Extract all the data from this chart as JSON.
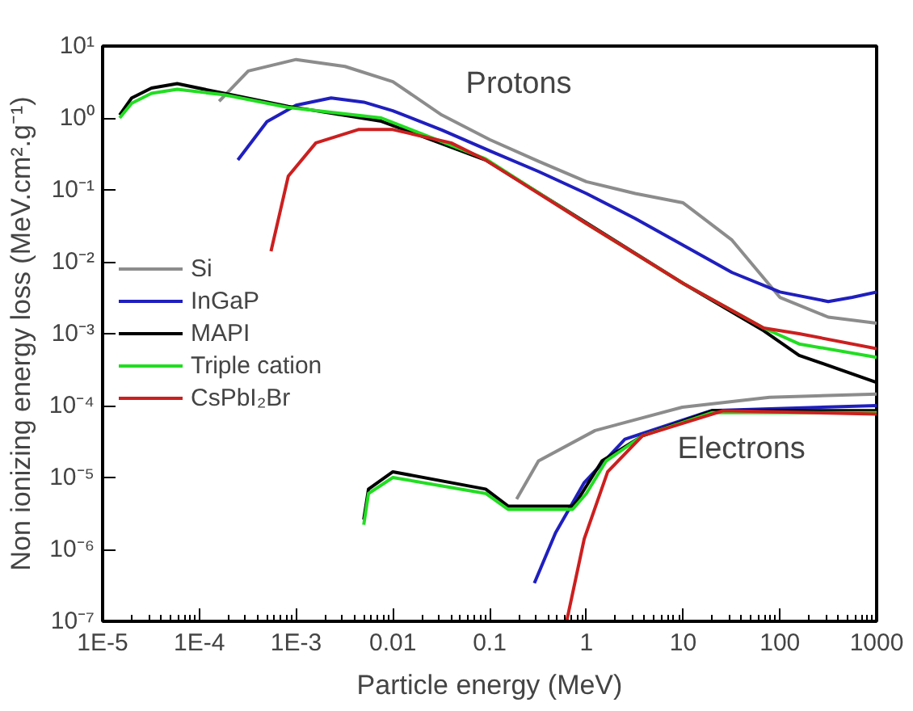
{
  "chart_data": {
    "type": "line",
    "xlabel": "Particle energy (MeV)",
    "ylabel": "Non ionizing energy loss (MeV.cm².g⁻¹)",
    "log": "xy",
    "xlim": [
      1e-05,
      1000
    ],
    "ylim": [
      1e-07,
      10
    ],
    "xticks": [
      {
        "value": 1e-05,
        "label": "1E-5"
      },
      {
        "value": 0.0001,
        "label": "1E-4"
      },
      {
        "value": 0.001,
        "label": "1E-3"
      },
      0.01,
      0.1,
      1,
      10,
      100,
      1000
    ],
    "yticks": [
      {
        "value": 1e-07,
        "label": "10⁻⁷"
      },
      {
        "value": 1e-06,
        "label": "10⁻⁶"
      },
      {
        "value": 1e-05,
        "label": "10⁻⁵"
      },
      {
        "value": 0.0001,
        "label": "10⁻⁴"
      },
      {
        "value": 0.001,
        "label": "10⁻³"
      },
      {
        "value": 0.01,
        "label": "10⁻²"
      },
      {
        "value": 0.1,
        "label": "10⁻¹"
      },
      {
        "value": 1,
        "label": "10⁰"
      },
      {
        "value": 10,
        "label": "10¹"
      }
    ],
    "grid": false,
    "legend": "left",
    "marker": "none",
    "line_style": "solid",
    "annotations": [
      "Protons",
      "Electrons"
    ],
    "series": [
      {
        "name": "Si",
        "color": "#8c8c8c",
        "x": [
          0.00016,
          0.00032,
          0.001,
          0.0032,
          0.01,
          0.032,
          0.1,
          0.32,
          1,
          3.2,
          10,
          32,
          100,
          316,
          1000
        ],
        "values": [
          1.7,
          4.5,
          6.5,
          5.2,
          3.2,
          1.1,
          0.5,
          0.25,
          0.13,
          0.089,
          0.066,
          0.02,
          0.0032,
          0.0017,
          0.0014
        ]
      },
      {
        "name": "InGaP",
        "color": "#1f1fbf",
        "x": [
          0.00025,
          0.0005,
          0.001,
          0.0023,
          0.005,
          0.01,
          0.032,
          0.1,
          0.32,
          1,
          3.2,
          10,
          32,
          100,
          316,
          560,
          1000
        ],
        "values": [
          0.26,
          0.89,
          1.5,
          1.9,
          1.66,
          1.26,
          0.68,
          0.35,
          0.18,
          0.089,
          0.04,
          0.017,
          0.0071,
          0.0038,
          0.0028,
          0.0032,
          0.0038
        ]
      },
      {
        "name": "MAPI",
        "color": "#000000",
        "x": [
          1.5e-05,
          2e-05,
          3.2e-05,
          5.9e-05,
          0.00018,
          0.00083,
          0.0076,
          0.091,
          1,
          10,
          68,
          158,
          1000
        ],
        "values": [
          1.1,
          1.9,
          2.6,
          3.0,
          2.2,
          1.45,
          0.9,
          0.26,
          0.035,
          0.005,
          0.0011,
          0.0005,
          0.00021
        ]
      },
      {
        "name": "Triple cation",
        "color": "#22dd22",
        "x": [
          1.5e-05,
          2e-05,
          3.2e-05,
          5.9e-05,
          0.00018,
          0.00083,
          0.0076,
          0.091,
          1,
          10,
          68,
          158,
          1000
        ],
        "values": [
          1.0,
          1.6,
          2.2,
          2.5,
          2.1,
          1.4,
          1.0,
          0.27,
          0.034,
          0.005,
          0.0012,
          0.00072,
          0.00047
        ]
      },
      {
        "name": "CsPbI₂Br",
        "color": "#cc1f1f",
        "x": [
          0.00055,
          0.00083,
          0.0016,
          0.0044,
          0.01,
          0.04,
          0.091,
          1,
          10,
          68,
          158,
          1000
        ],
        "values": [
          0.014,
          0.155,
          0.45,
          0.69,
          0.69,
          0.45,
          0.26,
          0.034,
          0.005,
          0.0012,
          0.001,
          0.00062
        ]
      },
      {
        "color": "#8c8c8c",
        "x": [
          0.19,
          0.32,
          1.23,
          9.8,
          78,
          1000
        ],
        "values": [
          5e-06,
          1.7e-05,
          4.5e-05,
          9.5e-05,
          0.00013,
          0.000145
        ]
      },
      {
        "color": "#1f1fbf",
        "x": [
          0.29,
          0.48,
          0.95,
          2.5,
          19.5,
          1000
        ],
        "values": [
          3.4e-07,
          1.7e-06,
          8.5e-06,
          3.4e-05,
          8.5e-05,
          0.0001
        ]
      },
      {
        "color": "#000000",
        "x": [
          0.005,
          0.0056,
          0.01,
          0.091,
          0.155,
          0.72,
          0.8,
          1.45,
          3.8,
          20,
          1000
        ],
        "values": [
          2.6e-06,
          6.9e-06,
          1.2e-05,
          6.9e-06,
          4e-06,
          4e-06,
          4.7e-06,
          1.7e-05,
          3.8e-05,
          8.5e-05,
          8.5e-05
        ]
      },
      {
        "color": "#22dd22",
        "x": [
          0.005,
          0.0056,
          0.01,
          0.091,
          0.155,
          0.72,
          1.0,
          1.6,
          3.8,
          20,
          1000
        ],
        "values": [
          2.2e-06,
          6e-06,
          1e-05,
          6e-06,
          3.6e-06,
          3.6e-06,
          6e-06,
          1.7e-05,
          3.8e-05,
          8e-05,
          8e-05
        ]
      },
      {
        "color": "#cc1f1f",
        "x": [
          0.63,
          0.95,
          1.66,
          3.8,
          26,
          1000
        ],
        "values": [
          1.05e-07,
          1.4e-06,
          1.2e-05,
          3.8e-05,
          8.5e-05,
          7.6e-05
        ]
      }
    ]
  }
}
